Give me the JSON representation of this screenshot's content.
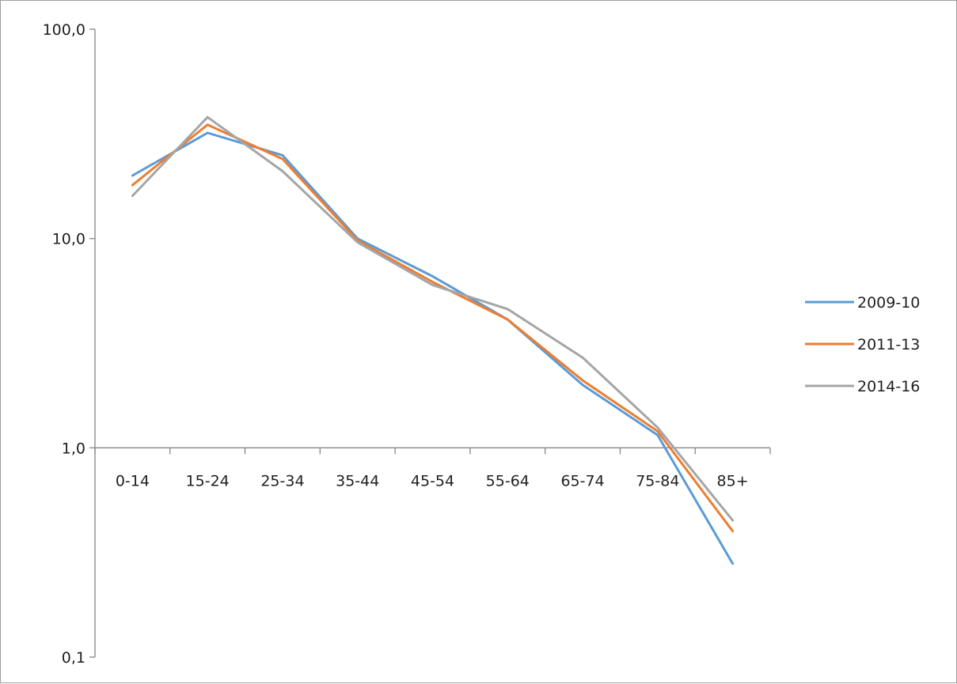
{
  "chart_data": {
    "type": "line",
    "y_scale": "log",
    "ylim": [
      0.1,
      100
    ],
    "y_ticks": [
      {
        "value": 100,
        "label": "100,0"
      },
      {
        "value": 10,
        "label": "10,0"
      },
      {
        "value": 1,
        "label": "1,0"
      },
      {
        "value": 0.1,
        "label": "0,1"
      }
    ],
    "categories": [
      "0-14",
      "15-24",
      "25-34",
      "35-44",
      "45-54",
      "55-64",
      "65-74",
      "75-84",
      "85+"
    ],
    "x_axis_crosses_at": 1,
    "grid": false,
    "legend_position": "right",
    "series": [
      {
        "name": "2009-10",
        "color": "#5b9bd5",
        "values": [
          20.0,
          32.0,
          25.0,
          10.0,
          6.6,
          4.1,
          2.0,
          1.15,
          0.28
        ]
      },
      {
        "name": "2011-13",
        "color": "#ed7d31",
        "values": [
          18.0,
          35.0,
          24.0,
          9.8,
          6.2,
          4.1,
          2.1,
          1.2,
          0.4
        ]
      },
      {
        "name": "2014-16",
        "color": "#a5a5a5",
        "values": [
          16.0,
          38.0,
          21.0,
          9.6,
          6.0,
          4.6,
          2.7,
          1.25,
          0.45
        ]
      }
    ]
  }
}
